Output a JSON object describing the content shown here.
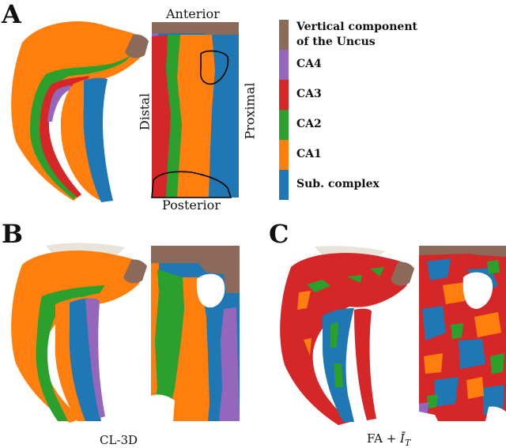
{
  "colors": {
    "uncus": "#8c6a5a",
    "ca4": "#9467bd",
    "ca3": "#d62728",
    "ca2": "#2ca02c",
    "ca1": "#ff7f0e",
    "subcomplex": "#1f77b4",
    "outline": "#000000"
  },
  "panels": {
    "a": {
      "letter": "A"
    },
    "b": {
      "letter": "B",
      "caption": "CL-3D"
    },
    "c": {
      "letter": "C",
      "caption_main": "FA + ",
      "caption_symbol": "Ī",
      "caption_sub": "T"
    }
  },
  "flat_map": {
    "top_label": "Anterior",
    "bottom_label": "Posterior",
    "left_label": "Distal",
    "right_label": "Proximal"
  },
  "legend": {
    "items": [
      {
        "line1": "Vertical component",
        "line2": "of the Uncus",
        "color_key": "uncus"
      },
      {
        "line1": "CA4",
        "color_key": "ca4"
      },
      {
        "line1": "CA3",
        "color_key": "ca3"
      },
      {
        "line1": "CA2",
        "color_key": "ca2"
      },
      {
        "line1": "CA1",
        "color_key": "ca1"
      },
      {
        "line1": "Sub. complex",
        "color_key": "subcomplex"
      }
    ]
  }
}
